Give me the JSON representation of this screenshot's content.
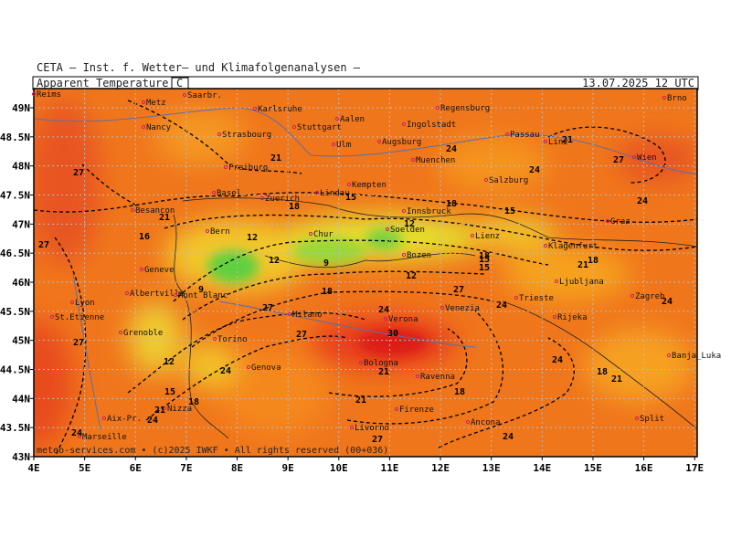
{
  "header": {
    "org": "CETA — Inst. f. Wetter— und Klimafolgenanalysen —",
    "parameter": "Apparent_Temperature",
    "unit": "C",
    "datetime": "13.07.2025 12 UTC"
  },
  "axes": {
    "lonlim": [
      4,
      17.05
    ],
    "latlim": [
      43,
      49.33
    ],
    "lat_ticks": [
      {
        "value": 49,
        "label": "49N"
      },
      {
        "value": 48.5,
        "label": "48.5N"
      },
      {
        "value": 48,
        "label": "48N"
      },
      {
        "value": 47.5,
        "label": "47.5N"
      },
      {
        "value": 47,
        "label": "47N"
      },
      {
        "value": 46.5,
        "label": "46.5N"
      },
      {
        "value": 46,
        "label": "46N"
      },
      {
        "value": 45.5,
        "label": "45.5N"
      },
      {
        "value": 45,
        "label": "45N"
      },
      {
        "value": 44.5,
        "label": "44.5N"
      },
      {
        "value": 44,
        "label": "44N"
      },
      {
        "value": 43.5,
        "label": "43.5N"
      },
      {
        "value": 43,
        "label": "43N"
      }
    ],
    "lon_ticks": [
      {
        "value": 4,
        "label": "4E"
      },
      {
        "value": 5,
        "label": "5E"
      },
      {
        "value": 6,
        "label": "6E"
      },
      {
        "value": 7,
        "label": "7E"
      },
      {
        "value": 8,
        "label": "8E"
      },
      {
        "value": 9,
        "label": "9E"
      },
      {
        "value": 10,
        "label": "10E"
      },
      {
        "value": 11,
        "label": "11E"
      },
      {
        "value": 12,
        "label": "12E"
      },
      {
        "value": 13,
        "label": "13E"
      },
      {
        "value": 14,
        "label": "14E"
      },
      {
        "value": 15,
        "label": "15E"
      },
      {
        "value": 16,
        "label": "16E"
      },
      {
        "value": 17,
        "label": "17E"
      }
    ]
  },
  "cities": [
    "Reims",
    "Saarbr.",
    "Brno",
    "Metz",
    "Karlsruhe",
    "Regensburg",
    "Aalen",
    "Ingolstadt",
    "Nancy",
    "Stuttgart",
    "Strasbourg",
    "Passau",
    "Ulm",
    "Augsburg",
    "Linz",
    "Muenchen",
    "Wien",
    "Freiburg",
    "Salzburg",
    "Basel",
    "Zuerich",
    "Kempten",
    "Lindau",
    "Innsbruck",
    "Besancon",
    "Graz",
    "Bern",
    "Chur",
    "Soelden",
    "Lienz",
    "Bozen",
    "Klagenfurt",
    "Geneve",
    "Ljubljana",
    "Albertville",
    "Mont Blanc",
    "Zagreb",
    "Lyon",
    "Trieste",
    "Milano",
    "Verona",
    "Venezia",
    "St.Etienne",
    "Rijeka",
    "Grenoble",
    "Torino",
    "Bologna",
    "Genova",
    "Ravenna",
    "Banja_Luka",
    "Firenze",
    "Nizza",
    "Aix-Pr.",
    "Livorno",
    "Ancona",
    "Marseille",
    "Split"
  ],
  "contour_labels": [
    27,
    21,
    24,
    27,
    24,
    21,
    27,
    24,
    18,
    15,
    18,
    27,
    16,
    12,
    12,
    15,
    9,
    12,
    9,
    12,
    15,
    18,
    18,
    15,
    21,
    21,
    18,
    27,
    24,
    27,
    30,
    24,
    21,
    24,
    12,
    15,
    18,
    21,
    24,
    18,
    21,
    24,
    24,
    27,
    18,
    21,
    24,
    24,
    27
  ],
  "footer": "meteo-services.com • (c)2025 IWKF • All rights reserved (00+036)"
}
